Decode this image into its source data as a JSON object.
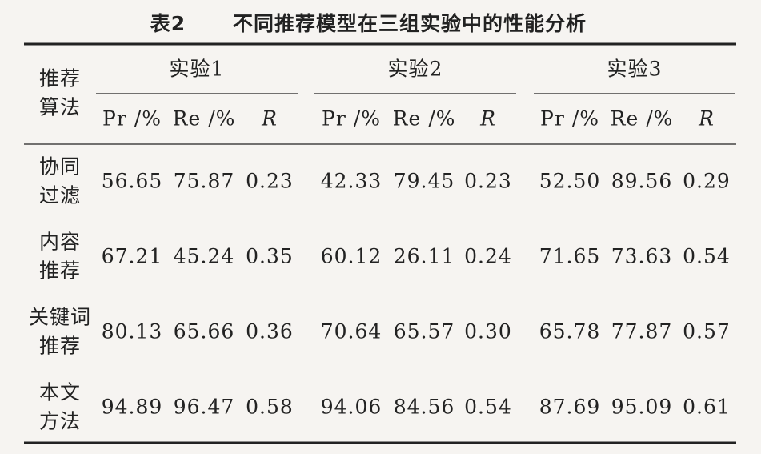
{
  "caption": {
    "label": "表2",
    "title": "不同推荐模型在三组实验中的性能分析"
  },
  "table": {
    "corner": [
      "推荐",
      "算法"
    ],
    "groups": [
      "实验1",
      "实验2",
      "实验3"
    ],
    "columns": [
      "Pr /%",
      "Re /%",
      "R"
    ],
    "rows": [
      {
        "label": [
          "协同",
          "过滤"
        ],
        "cells": [
          "56.65",
          "75.87",
          "0.23",
          "42.33",
          "79.45",
          "0.23",
          "52.50",
          "89.56",
          "0.29"
        ]
      },
      {
        "label": [
          "内容",
          "推荐"
        ],
        "cells": [
          "67.21",
          "45.24",
          "0.35",
          "60.12",
          "26.11",
          "0.24",
          "71.65",
          "73.63",
          "0.54"
        ]
      },
      {
        "label": [
          "关键词",
          "推荐"
        ],
        "cells": [
          "80.13",
          "65.66",
          "0.36",
          "70.64",
          "65.57",
          "0.30",
          "65.78",
          "77.87",
          "0.57"
        ]
      },
      {
        "label": [
          "本文",
          "方法"
        ],
        "cells": [
          "94.89",
          "96.47",
          "0.58",
          "94.06",
          "84.56",
          "0.54",
          "87.69",
          "95.09",
          "0.61"
        ]
      }
    ]
  }
}
